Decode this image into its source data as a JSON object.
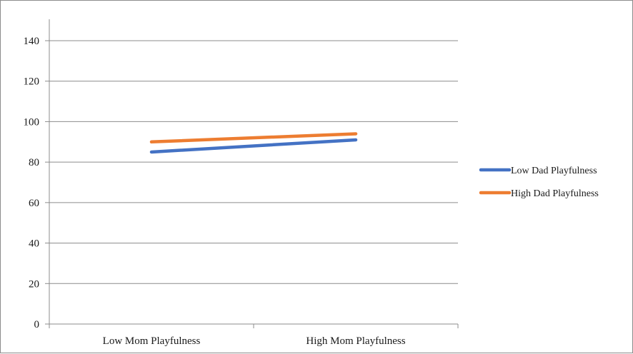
{
  "chart_data": {
    "type": "line",
    "categories": [
      "Low Mom Playfulness",
      "High Mom Playfulness"
    ],
    "series": [
      {
        "name": "Low Dad Playfulness",
        "values": [
          85,
          91
        ],
        "color": "#4472c4"
      },
      {
        "name": "High Dad Playfulness",
        "values": [
          90,
          94
        ],
        "color": "#ed7d31"
      }
    ],
    "ylim": [
      0,
      140
    ],
    "yticks": [
      0,
      20,
      40,
      60,
      80,
      100,
      120,
      140
    ],
    "grid": true,
    "legend": "right",
    "xlabel": "",
    "ylabel": "",
    "title": ""
  }
}
